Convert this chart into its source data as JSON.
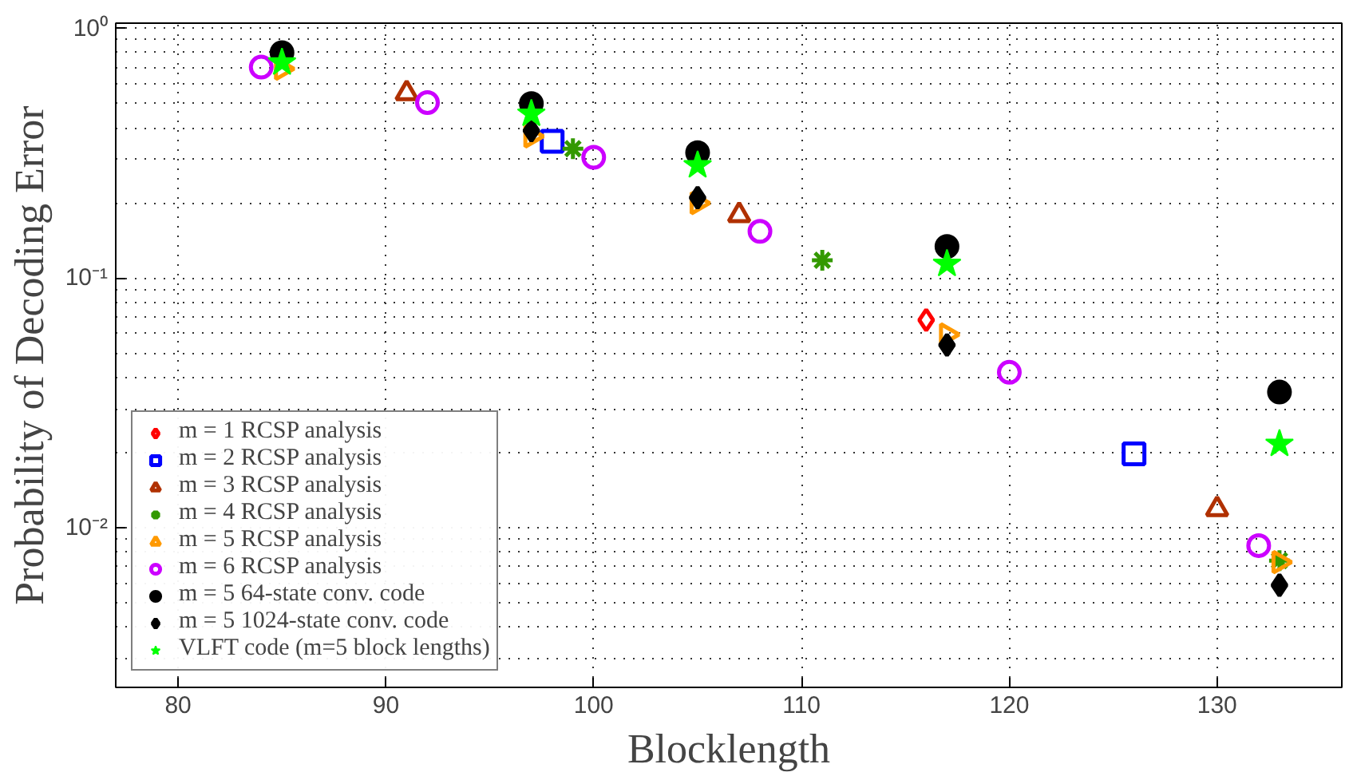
{
  "chart_data": {
    "type": "scatter",
    "xlabel": "Blocklength",
    "ylabel": "Probability of Decoding Error",
    "xlim": [
      77,
      136
    ],
    "xticks": [
      80,
      90,
      100,
      110,
      120,
      130
    ],
    "ylim": [
      0.0023,
      1.05
    ],
    "yticks": [
      {
        "value": 0.01,
        "label": "10⁻²"
      },
      {
        "value": 0.1,
        "label": "10⁻¹"
      },
      {
        "value": 1,
        "label": "10⁰"
      }
    ],
    "log": "y",
    "grid": true,
    "legend": "bottom left",
    "series": [
      {
        "name": "m = 1 RCSP analysis",
        "color": "#ff0000",
        "marker": "diamond",
        "x": [
          116
        ],
        "values": [
          0.068
        ]
      },
      {
        "name": "m = 2 RCSP analysis",
        "color": "#0000ff",
        "marker": "square",
        "x": [
          98,
          126
        ],
        "values": [
          0.353,
          0.0198
        ]
      },
      {
        "name": "m = 3 RCSP analysis",
        "color": "#b03000",
        "marker": "triangle",
        "x": [
          91,
          107,
          130
        ],
        "values": [
          0.55,
          0.179,
          0.0119
        ]
      },
      {
        "name": "m = 4 RCSP analysis",
        "color": "#339900",
        "marker": "cross",
        "x": [
          99,
          111,
          133
        ],
        "values": [
          0.33,
          0.118,
          0.0074
        ]
      },
      {
        "name": "m = 5 RCSP analysis",
        "color": "#ff9900",
        "marker": "triangle",
        "x": [
          85,
          97,
          105,
          117,
          133
        ],
        "values": [
          0.69,
          0.37,
          0.2,
          0.0595,
          0.0073
        ]
      },
      {
        "name": "m = 6 RCSP analysis",
        "color": "#cc00ff",
        "marker": "circle",
        "x": [
          84,
          92,
          100,
          108,
          120,
          132
        ],
        "values": [
          0.7,
          0.505,
          0.305,
          0.154,
          0.042,
          0.0085
        ]
      },
      {
        "name": "m = 5 64-state conv. code",
        "color": "#000000",
        "marker": "circle",
        "x": [
          85,
          97,
          105,
          117,
          133
        ],
        "values": [
          0.8,
          0.5,
          0.318,
          0.134,
          0.035
        ]
      },
      {
        "name": "m = 5 1024-state conv. code",
        "color": "#000000",
        "marker": "diamond",
        "x": [
          97,
          105,
          117,
          133
        ],
        "values": [
          0.39,
          0.21,
          0.054,
          0.0059
        ]
      },
      {
        "name": "VLFT code (m=5 block lengths)",
        "color": "#00ff00",
        "marker": "star",
        "x": [
          85,
          97,
          105,
          117,
          133
        ],
        "values": [
          0.73,
          0.455,
          0.283,
          0.114,
          0.0217
        ]
      }
    ]
  }
}
